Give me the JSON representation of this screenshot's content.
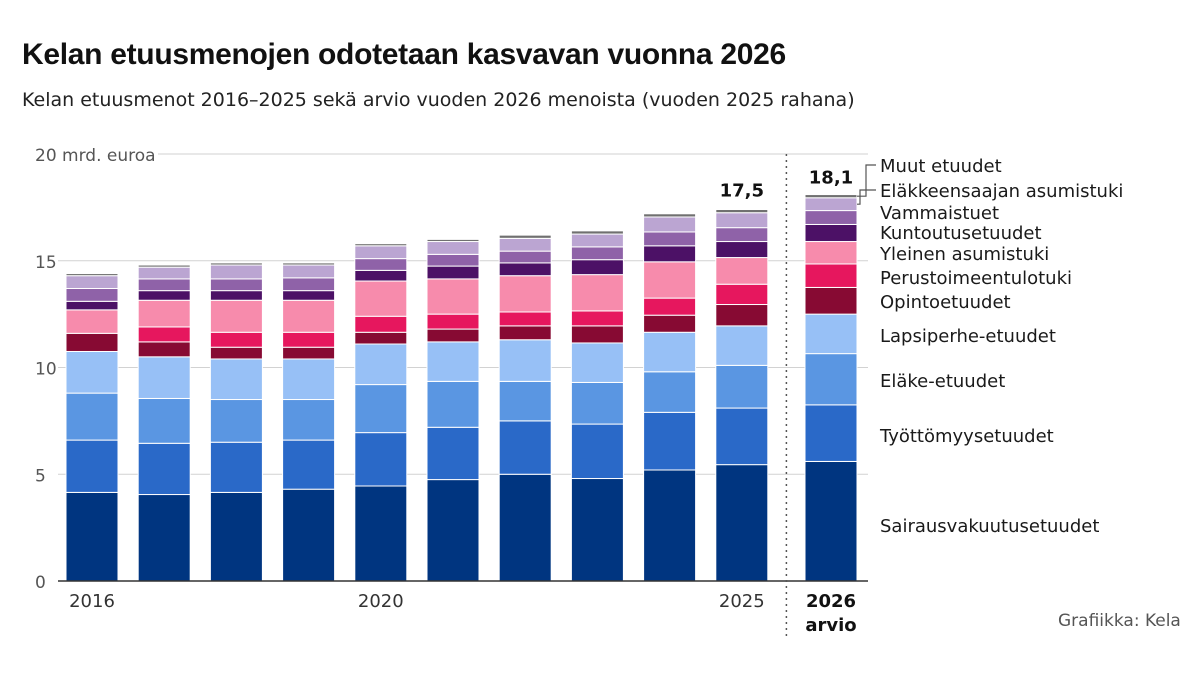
{
  "header": {
    "title": "Kelan etuusmenojen odotetaan kasvavan vuonna 2026",
    "subtitle": "Kelan etuusmenot 2016–2025 sekä arvio vuoden 2026 menoista (vuoden 2025 rahana)"
  },
  "source": "Grafiikka: Kela",
  "chart_data": {
    "type": "bar",
    "stacked": true,
    "title": "Kelan etuusmenojen odotetaan kasvavan vuonna 2026",
    "subtitle": "Kelan etuusmenot 2016–2025 sekä arvio vuoden 2026 menoista (vuoden 2025 rahana)",
    "y_unit": "mrd. euroa",
    "ylim": [
      0,
      20
    ],
    "yticks": [
      0,
      5,
      10,
      15,
      20
    ],
    "ytick_labels": [
      "0",
      "5",
      "10",
      "15",
      "20 mrd. euroa"
    ],
    "grid": true,
    "legend_placement": "right",
    "categories": [
      "2016",
      "2017",
      "2018",
      "2019",
      "2020",
      "2021",
      "2022",
      "2023",
      "2024",
      "2025",
      "2026 arvio"
    ],
    "x_tick_labels": [
      "2016",
      "",
      "",
      "",
      "2020",
      "",
      "",
      "",
      "",
      "2025",
      "2026|arvio"
    ],
    "totals": [
      14.4,
      14.8,
      14.9,
      14.9,
      15.9,
      16.1,
      16.2,
      16.6,
      17.2,
      17.5,
      18.1
    ],
    "total_labels": [
      "",
      "",
      "",
      "",
      "",
      "",
      "",
      "",
      "",
      "17,5",
      "18,1"
    ],
    "series": [
      {
        "name": "Sairausvakuutusetuudet",
        "color": "#003580",
        "values": [
          4.15,
          4.05,
          4.15,
          4.3,
          4.45,
          4.75,
          5.0,
          4.8,
          5.2,
          5.45,
          5.6
        ]
      },
      {
        "name": "Työttömyysetuudet",
        "color": "#2a69c8",
        "values": [
          2.45,
          2.4,
          2.35,
          2.3,
          2.5,
          2.45,
          2.5,
          2.55,
          2.7,
          2.65,
          2.65
        ]
      },
      {
        "name": "Eläke-etuudet",
        "color": "#5a96e2",
        "values": [
          2.2,
          2.1,
          2.0,
          1.9,
          2.25,
          2.15,
          1.85,
          1.95,
          1.9,
          2.0,
          2.4
        ]
      },
      {
        "name": "Lapsiperhe-etuudet",
        "color": "#97c0f6",
        "values": [
          1.95,
          1.95,
          1.9,
          1.9,
          1.9,
          1.85,
          1.95,
          1.85,
          1.85,
          1.85,
          1.85
        ]
      },
      {
        "name": "Opintoetuudet",
        "color": "#870a33",
        "values": [
          0.85,
          0.7,
          0.55,
          0.55,
          0.55,
          0.6,
          0.65,
          0.8,
          0.8,
          1.0,
          1.25
        ]
      },
      {
        "name": "Perustoimeentulotuki",
        "color": "#e6175e",
        "values": [
          0.0,
          0.7,
          0.7,
          0.7,
          0.75,
          0.7,
          0.65,
          0.7,
          0.8,
          0.95,
          1.1
        ]
      },
      {
        "name": "Yleinen asumistuki",
        "color": "#f78bac",
        "values": [
          1.1,
          1.25,
          1.5,
          1.5,
          1.65,
          1.65,
          1.7,
          1.7,
          1.7,
          1.25,
          1.05
        ]
      },
      {
        "name": "Kuntoutusetuudet",
        "color": "#4c1166",
        "values": [
          0.4,
          0.45,
          0.45,
          0.45,
          0.5,
          0.6,
          0.6,
          0.7,
          0.75,
          0.75,
          0.8
        ]
      },
      {
        "name": "Vammaistuet",
        "color": "#8f62a8",
        "values": [
          0.6,
          0.55,
          0.55,
          0.6,
          0.55,
          0.55,
          0.55,
          0.6,
          0.65,
          0.65,
          0.65
        ]
      },
      {
        "name": "Eläkkeensaajan asumistuki",
        "color": "#bba5d2",
        "values": [
          0.6,
          0.55,
          0.65,
          0.6,
          0.6,
          0.6,
          0.6,
          0.6,
          0.7,
          0.7,
          0.6
        ]
      },
      {
        "name": "Muut etuudet",
        "color": "#707070",
        "values": [
          0.1,
          0.1,
          0.1,
          0.1,
          0.1,
          0.1,
          0.15,
          0.15,
          0.15,
          0.15,
          0.15
        ]
      }
    ],
    "forecast_separator_before": "2026 arvio"
  }
}
